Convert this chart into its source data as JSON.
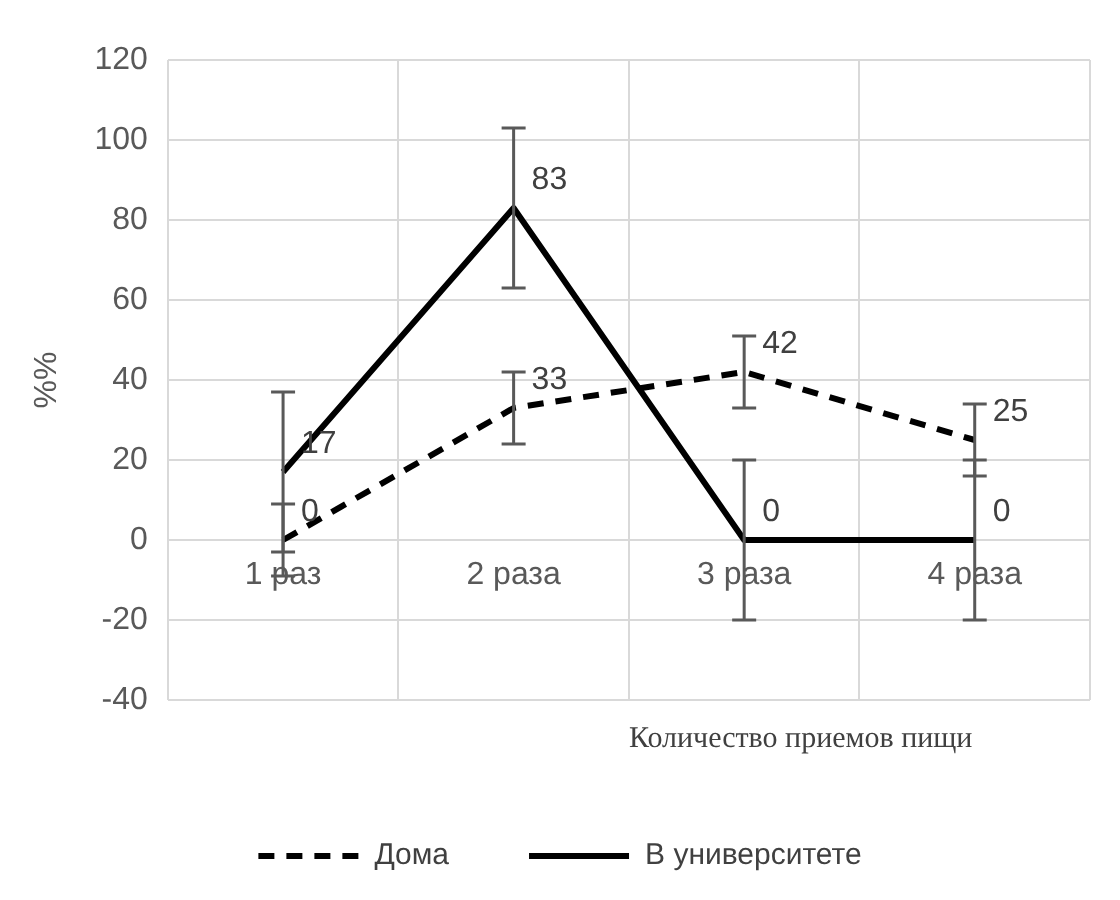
{
  "chart_data": {
    "type": "line",
    "xlabel": "Количество приемов пищи",
    "ylabel": "%%",
    "categories": [
      "1 раз",
      "2 раза",
      "3 раза",
      "4 раза"
    ],
    "series": [
      {
        "name": "Дома",
        "color": "#000000",
        "line_style": "dashed",
        "values": [
          0,
          33,
          42,
          25
        ],
        "errors": [
          9,
          9,
          9,
          9
        ]
      },
      {
        "name": "В университете",
        "color": "#000000",
        "line_style": "solid",
        "values": [
          17,
          83,
          0,
          0
        ],
        "errors": [
          20,
          20,
          20,
          20
        ]
      }
    ],
    "ylim": [
      -40,
      120
    ],
    "yticks": [
      -40,
      -20,
      0,
      20,
      40,
      60,
      80,
      100,
      120
    ],
    "grid": true,
    "legend": "bottom",
    "marker": "none",
    "data_labels": true
  }
}
